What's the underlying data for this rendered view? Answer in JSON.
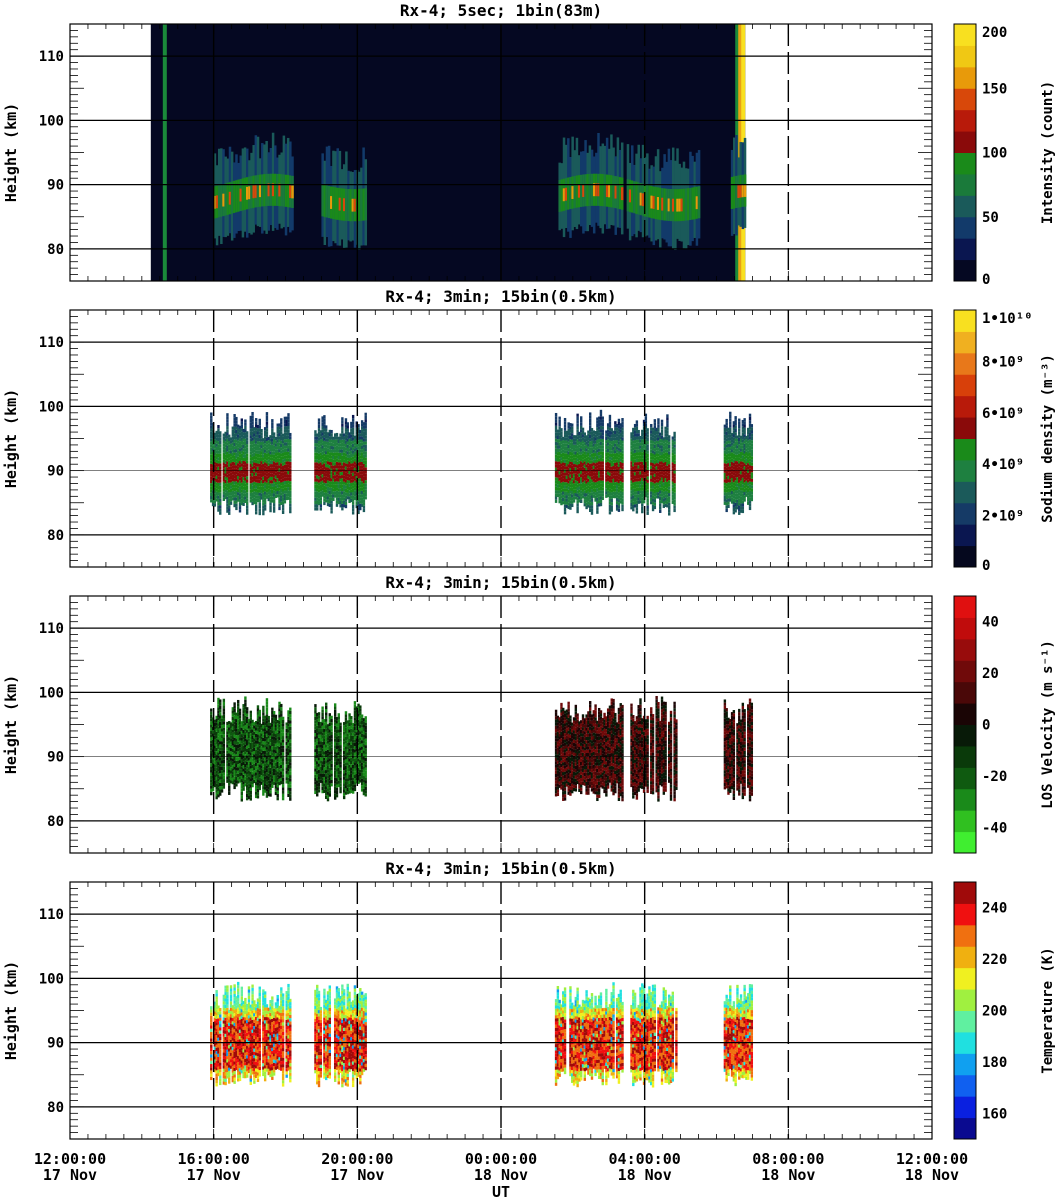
{
  "figure": {
    "x_axis_title": "UT",
    "x_ticks": [
      {
        "time": "12:00:00",
        "date": "17 Nov",
        "hours": 0
      },
      {
        "time": "16:00:00",
        "date": "17 Nov",
        "hours": 4
      },
      {
        "time": "20:00:00",
        "date": "17 Nov",
        "hours": 8
      },
      {
        "time": "00:00:00",
        "date": "18 Nov",
        "hours": 12
      },
      {
        "time": "04:00:00",
        "date": "18 Nov",
        "hours": 16
      },
      {
        "time": "08:00:00",
        "date": "18 Nov",
        "hours": 20
      },
      {
        "time": "12:00:00",
        "date": "18 Nov",
        "hours": 24
      }
    ],
    "colors": {
      "intensity": [
        "#050822",
        "#0a1650",
        "#123a6a",
        "#1a5a5a",
        "#1a7a3a",
        "#1a8a1a",
        "#8a0a0a",
        "#b81a0a",
        "#d8480a",
        "#e89a0a",
        "#f0c814",
        "#f8e020"
      ],
      "density": [
        "#05081e",
        "#0a1650",
        "#153a66",
        "#1b5a5a",
        "#1e8040",
        "#1a8a1a",
        "#8a0a0a",
        "#b81a0a",
        "#d8400a",
        "#e8781a",
        "#f0b020",
        "#f8e020"
      ],
      "velocity": [
        "#40ee30",
        "#30c020",
        "#1a8a1a",
        "#0f5a10",
        "#0a3a0a",
        "#081a08",
        "#1a0505",
        "#4a0808",
        "#700a0a",
        "#980c0c",
        "#c00c0c",
        "#e01010"
      ],
      "temperature": [
        "#0a0a90",
        "#0a20e0",
        "#1060f0",
        "#10a0f0",
        "#20e0e0",
        "#60f0a0",
        "#a0f040",
        "#f0f020",
        "#f0b010",
        "#f07010",
        "#f01010",
        "#a00a0a"
      ]
    }
  },
  "chart_data": [
    {
      "type": "heatmap",
      "title": "Rx-4;  5sec; 1bin(83m)",
      "ylabel": "Height (km)",
      "ylim": [
        75,
        115
      ],
      "y_ticks": [
        80,
        90,
        100,
        110
      ],
      "xlim_hours": [
        0,
        24
      ],
      "data_coverage_hours": [
        2.25,
        18.8
      ],
      "peak_intensity_hours": [
        [
          4,
          6.2
        ],
        [
          7,
          8.2
        ],
        [
          15.5,
          17.5
        ]
      ],
      "colorbar": {
        "label": "Intensity (count)",
        "min": 0,
        "max": 200,
        "ticks": [
          "0",
          "50",
          "100",
          "150",
          "200"
        ]
      }
    },
    {
      "type": "heatmap",
      "title": "Rx-4; 3min; 15bin(0.5km)",
      "ylabel": "Height (km)",
      "ylim": [
        75,
        115
      ],
      "y_ticks": [
        80,
        90,
        100,
        110
      ],
      "xlim_hours": [
        0,
        24
      ],
      "data_segments_hours": [
        [
          3.9,
          6.1
        ],
        [
          6.8,
          8.2
        ],
        [
          13.5,
          15.4
        ],
        [
          15.6,
          16.9
        ],
        [
          18.2,
          19.0
        ]
      ],
      "colorbar": {
        "label": "Sodium density (m⁻³)",
        "min": 0,
        "max": 10000000000,
        "ticks": [
          "0",
          "2•10⁹",
          "4•10⁹",
          "6•10⁹",
          "8•10⁹",
          "1•10¹⁰"
        ]
      }
    },
    {
      "type": "heatmap",
      "title": "Rx-4; 3min; 15bin(0.5km)",
      "ylabel": "Height (km)",
      "ylim": [
        75,
        115
      ],
      "y_ticks": [
        80,
        90,
        100,
        110
      ],
      "xlim_hours": [
        0,
        24
      ],
      "data_segments_hours": [
        [
          3.9,
          6.1
        ],
        [
          6.8,
          8.2
        ],
        [
          13.5,
          15.4
        ],
        [
          15.6,
          16.9
        ],
        [
          18.2,
          19.0
        ]
      ],
      "colorbar": {
        "label": "LOS Velocity (m s⁻¹)",
        "min": -50,
        "max": 50,
        "ticks": [
          "-40",
          "-20",
          "0",
          "20",
          "40"
        ]
      }
    },
    {
      "type": "heatmap",
      "title": "Rx-4; 3min; 15bin(0.5km)",
      "ylabel": "Height (km)",
      "ylim": [
        75,
        115
      ],
      "y_ticks": [
        80,
        90,
        100,
        110
      ],
      "xlim_hours": [
        0,
        24
      ],
      "data_segments_hours": [
        [
          3.9,
          6.1
        ],
        [
          6.8,
          8.2
        ],
        [
          13.5,
          15.4
        ],
        [
          15.6,
          16.9
        ],
        [
          18.2,
          19.0
        ]
      ],
      "colorbar": {
        "label": "Temperature (K)",
        "min": 150,
        "max": 250,
        "ticks": [
          "160",
          "180",
          "200",
          "220",
          "240"
        ]
      }
    }
  ]
}
